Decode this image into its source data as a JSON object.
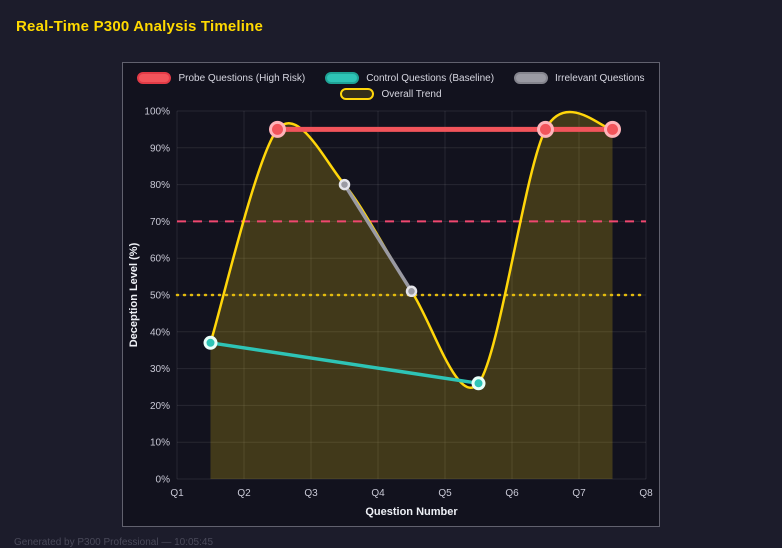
{
  "header": {
    "title": "Real-Time P300 Analysis Timeline"
  },
  "footer": {
    "text": "Generated by P300 Professional — 10:05:45"
  },
  "colors": {
    "page_bg": "#1c1c2b",
    "panel_bg": "#12121e",
    "grid": "rgba(255,255,255,0.09)",
    "tick_text": "#c9c9d6",
    "axis_title_text": "#eef0f6",
    "title_text": "#ffd900"
  },
  "chart_data": {
    "type": "line",
    "title": "Real-Time P300 Analysis Timeline",
    "xlabel": "Question Number",
    "ylabel": "Deception Level (%)",
    "x_tick_labels": [
      "Q1",
      "Q2",
      "Q3",
      "Q4",
      "Q5",
      "Q6",
      "Q7",
      "Q8"
    ],
    "x_range": [
      1,
      8
    ],
    "y_range": [
      0,
      100
    ],
    "y_tick_step": 10,
    "y_tick_suffix": "%",
    "grid": true,
    "legend_position": "top",
    "legend_rows": [
      [
        0,
        1,
        2
      ],
      [
        3
      ]
    ],
    "series": [
      {
        "name": "Probe Questions (High Risk)",
        "color": "#f2545b",
        "line_width": 5,
        "marker_radius": 7,
        "marker_border": "#ffb3b9",
        "marker_border_width": 3,
        "smooth": false,
        "fill": null,
        "swatch_fill": "#f2545b",
        "swatch_border": "#e23b47",
        "points": [
          [
            2.5,
            95
          ],
          [
            6.5,
            95
          ],
          [
            7.5,
            95
          ]
        ]
      },
      {
        "name": "Control Questions (Baseline)",
        "color": "#2ec4b6",
        "line_width": 3.5,
        "marker_radius": 5.5,
        "marker_border": "#e9fffa",
        "marker_border_width": 3,
        "smooth": false,
        "fill": null,
        "swatch_fill": "#2ec4b6",
        "swatch_border": "#1fa396",
        "points": [
          [
            1.5,
            37
          ],
          [
            5.5,
            26
          ]
        ]
      },
      {
        "name": "Irrelevant Questions",
        "color": "#9a9aa3",
        "line_width": 3.5,
        "marker_radius": 4.5,
        "marker_border": "#e4e4ea",
        "marker_border_width": 2.5,
        "smooth": false,
        "fill": null,
        "swatch_fill": "#9a9aa3",
        "swatch_border": "#84848d",
        "points": [
          [
            3.5,
            80
          ],
          [
            4.5,
            51
          ]
        ]
      },
      {
        "name": "Overall Trend",
        "color": "#ffd60a",
        "line_width": 2.5,
        "marker_radius": 0,
        "marker_border": "#ffd60a",
        "marker_border_width": 0,
        "smooth": true,
        "fill": "rgba(255,214,10,0.20)",
        "swatch_fill": "rgba(255,214,10,0.15)",
        "swatch_border": "#ffd60a",
        "points": [
          [
            1.5,
            37
          ],
          [
            2.5,
            95
          ],
          [
            3.5,
            80
          ],
          [
            4.5,
            51
          ],
          [
            5.5,
            26
          ],
          [
            6.5,
            95
          ],
          [
            7.5,
            95
          ]
        ]
      }
    ],
    "thresholds": [
      {
        "y": 70,
        "color": "#ef476f",
        "dash": "9 7",
        "width": 2,
        "linecap": "butt"
      },
      {
        "y": 50,
        "color": "#e3bb0e",
        "dash": "1 6",
        "width": 2.5,
        "linecap": "round"
      }
    ]
  }
}
